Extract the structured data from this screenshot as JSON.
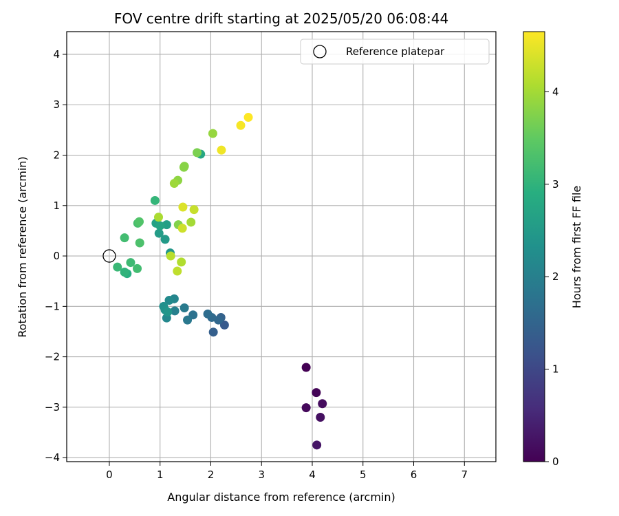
{
  "chart_data": {
    "type": "scatter",
    "title": "FOV centre drift starting at 2025/05/20 06:08:44",
    "xlabel": "Angular distance from reference (arcmin)",
    "ylabel": "Rotation from reference (arcmin)",
    "xlim": [
      -0.84,
      7.62
    ],
    "ylim": [
      -4.08,
      4.45
    ],
    "xticks": [
      0,
      1,
      2,
      3,
      4,
      5,
      6,
      7
    ],
    "yticks": [
      -4,
      -3,
      -2,
      -1,
      0,
      1,
      2,
      3,
      4
    ],
    "grid": true,
    "legend": {
      "position": "top-right",
      "entries": [
        "Reference platepar"
      ]
    },
    "reference": {
      "x": 0,
      "y": 0,
      "label": "Reference platepar"
    },
    "colorbar": {
      "label": "Hours from first FF file",
      "min": 0,
      "max": 4.65,
      "ticks": [
        0,
        1,
        2,
        3,
        4
      ],
      "colormap": "viridis"
    },
    "points": [
      {
        "x": 3.88,
        "y": -2.21,
        "hours": 0.0
      },
      {
        "x": 4.08,
        "y": -2.71,
        "hours": 0.05
      },
      {
        "x": 3.88,
        "y": -3.01,
        "hours": 0.1
      },
      {
        "x": 4.2,
        "y": -2.93,
        "hours": 0.15
      },
      {
        "x": 4.16,
        "y": -3.2,
        "hours": 0.2
      },
      {
        "x": 4.09,
        "y": -3.75,
        "hours": 0.25
      },
      {
        "x": 2.27,
        "y": -1.37,
        "hours": 1.3
      },
      {
        "x": 2.05,
        "y": -1.51,
        "hours": 1.4
      },
      {
        "x": 2.2,
        "y": -1.22,
        "hours": 1.45
      },
      {
        "x": 2.15,
        "y": -1.27,
        "hours": 1.55
      },
      {
        "x": 2.02,
        "y": -1.22,
        "hours": 1.6
      },
      {
        "x": 1.94,
        "y": -1.15,
        "hours": 1.65
      },
      {
        "x": 1.65,
        "y": -1.17,
        "hours": 1.75
      },
      {
        "x": 1.54,
        "y": -1.27,
        "hours": 1.85
      },
      {
        "x": 1.48,
        "y": -1.03,
        "hours": 1.9
      },
      {
        "x": 1.29,
        "y": -1.09,
        "hours": 2.0
      },
      {
        "x": 1.28,
        "y": -0.85,
        "hours": 2.1
      },
      {
        "x": 1.13,
        "y": -1.23,
        "hours": 2.15
      },
      {
        "x": 1.18,
        "y": -0.88,
        "hours": 2.2
      },
      {
        "x": 1.07,
        "y": -1.0,
        "hours": 2.3
      },
      {
        "x": 1.1,
        "y": -1.07,
        "hours": 2.35
      },
      {
        "x": 1.15,
        "y": -1.11,
        "hours": 2.4
      },
      {
        "x": 1.2,
        "y": 0.06,
        "hours": 2.45
      },
      {
        "x": 1.1,
        "y": 0.33,
        "hours": 2.5
      },
      {
        "x": 0.98,
        "y": 0.45,
        "hours": 2.55
      },
      {
        "x": 1.13,
        "y": 0.62,
        "hours": 2.6
      },
      {
        "x": 0.92,
        "y": 0.65,
        "hours": 2.65
      },
      {
        "x": 1.0,
        "y": 0.6,
        "hours": 2.7
      },
      {
        "x": 1.8,
        "y": 2.02,
        "hours": 2.75
      },
      {
        "x": 0.35,
        "y": -0.35,
        "hours": 2.9
      },
      {
        "x": 0.3,
        "y": -0.32,
        "hours": 3.0
      },
      {
        "x": 0.9,
        "y": 1.1,
        "hours": 3.05
      },
      {
        "x": 0.16,
        "y": -0.22,
        "hours": 3.1
      },
      {
        "x": 0.42,
        "y": -0.13,
        "hours": 3.15
      },
      {
        "x": 0.3,
        "y": 0.36,
        "hours": 3.2
      },
      {
        "x": 0.55,
        "y": -0.25,
        "hours": 3.2
      },
      {
        "x": 0.56,
        "y": 0.65,
        "hours": 3.25
      },
      {
        "x": 0.6,
        "y": 0.26,
        "hours": 3.3
      },
      {
        "x": 0.59,
        "y": 0.68,
        "hours": 3.35
      },
      {
        "x": 1.73,
        "y": 2.05,
        "hours": 3.7
      },
      {
        "x": 1.36,
        "y": 0.62,
        "hours": 3.75
      },
      {
        "x": 1.47,
        "y": 1.76,
        "hours": 3.8
      },
      {
        "x": 1.48,
        "y": 1.78,
        "hours": 3.8
      },
      {
        "x": 1.35,
        "y": 1.5,
        "hours": 3.85
      },
      {
        "x": 2.04,
        "y": 2.43,
        "hours": 3.9
      },
      {
        "x": 1.28,
        "y": 1.44,
        "hours": 3.95
      },
      {
        "x": 1.61,
        "y": 0.67,
        "hours": 4.0
      },
      {
        "x": 0.97,
        "y": 0.77,
        "hours": 4.05
      },
      {
        "x": 1.42,
        "y": -0.12,
        "hours": 4.1
      },
      {
        "x": 1.21,
        "y": 0.0,
        "hours": 4.15
      },
      {
        "x": 1.34,
        "y": -0.3,
        "hours": 4.2
      },
      {
        "x": 1.67,
        "y": 0.92,
        "hours": 4.25
      },
      {
        "x": 1.44,
        "y": 0.55,
        "hours": 4.3
      },
      {
        "x": 1.45,
        "y": 0.97,
        "hours": 4.4
      },
      {
        "x": 2.21,
        "y": 2.1,
        "hours": 4.55
      },
      {
        "x": 2.59,
        "y": 2.59,
        "hours": 4.6
      },
      {
        "x": 2.74,
        "y": 2.75,
        "hours": 4.65
      }
    ]
  }
}
